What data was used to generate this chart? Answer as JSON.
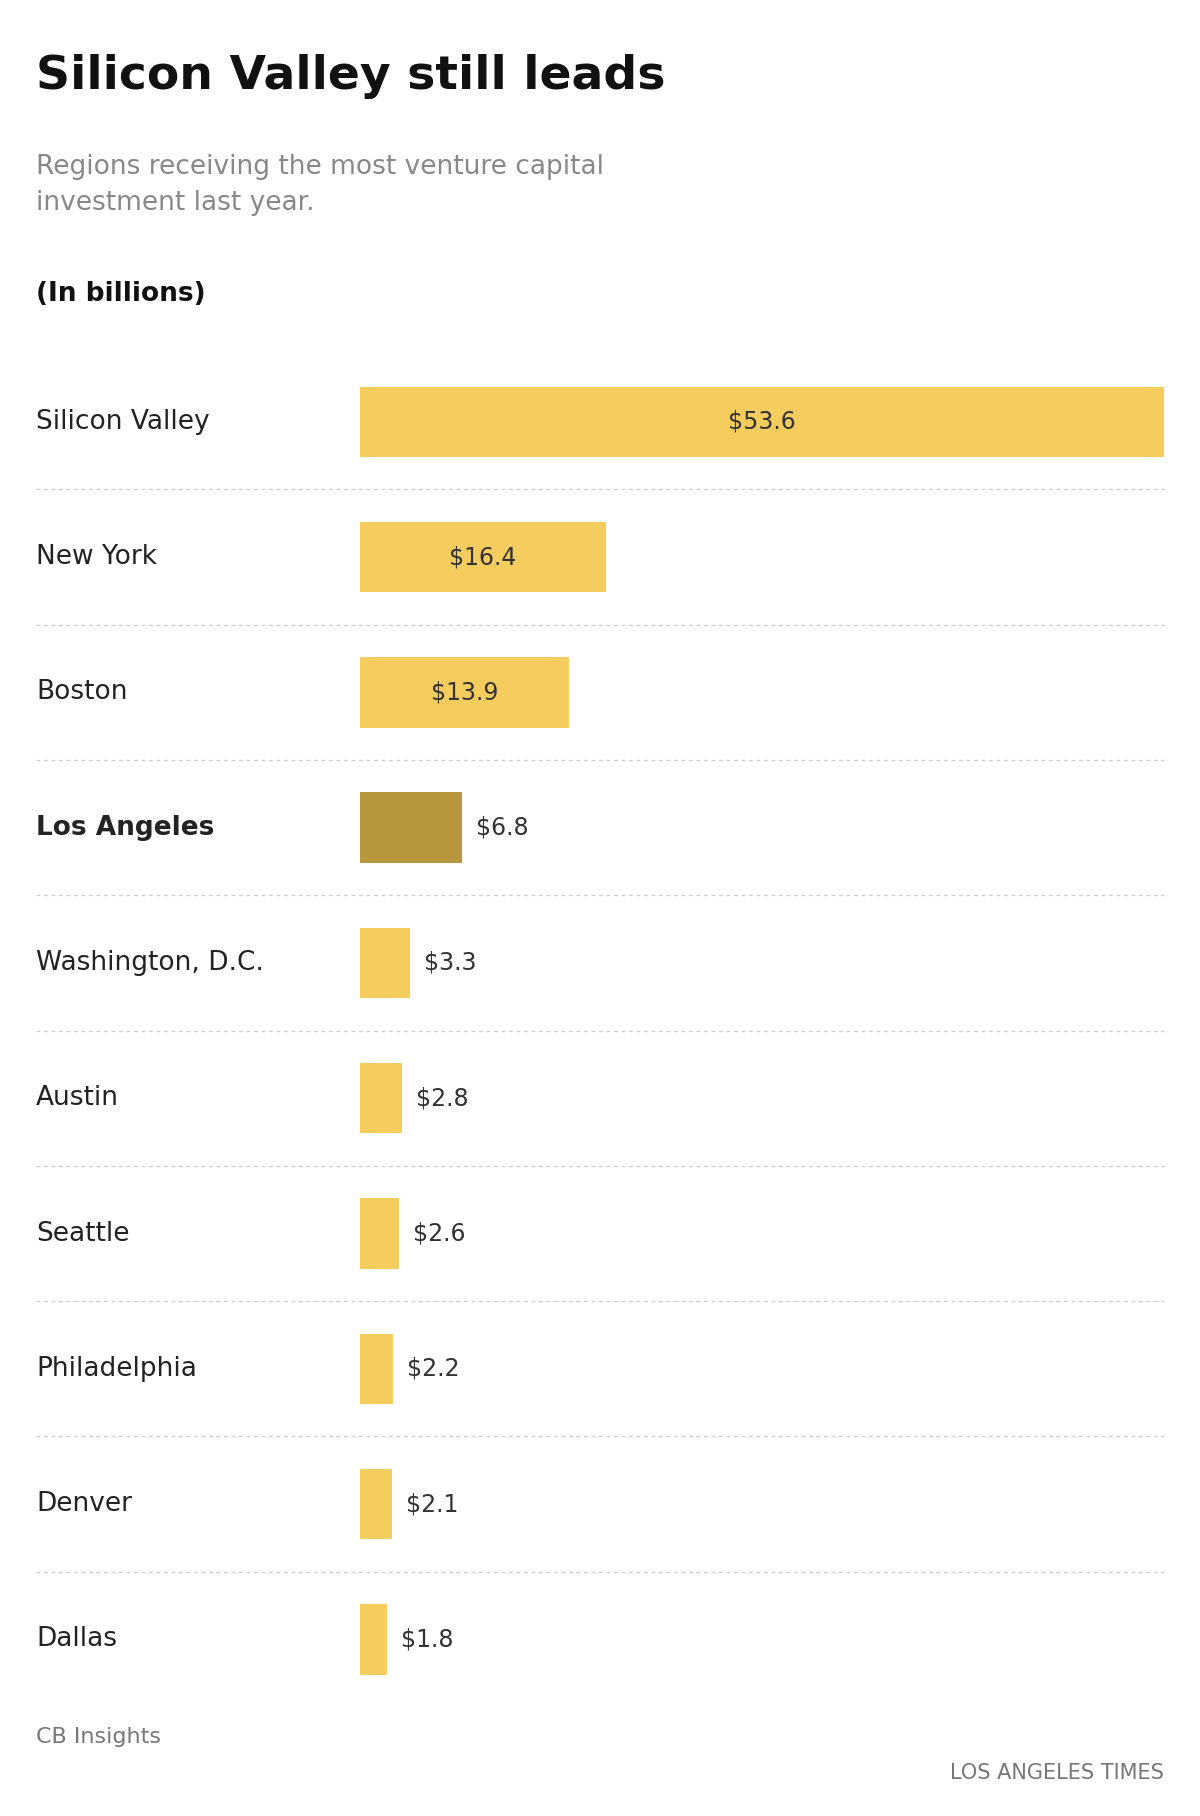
{
  "title": "Silicon Valley still leads",
  "subtitle": "Regions receiving the most venture capital\ninvestment last year.",
  "unit_label": "(In billions)",
  "source": "CB Insights",
  "credit": "LOS ANGELES TIMES",
  "categories": [
    "Silicon Valley",
    "New York",
    "Boston",
    "Los Angeles",
    "Washington, D.C.",
    "Austin",
    "Seattle",
    "Philadelphia",
    "Denver",
    "Dallas"
  ],
  "values": [
    53.6,
    16.4,
    13.9,
    6.8,
    3.3,
    2.8,
    2.6,
    2.2,
    2.1,
    1.8
  ],
  "labels": [
    "$53.6",
    "$16.4",
    "$13.9",
    "$6.8",
    "$3.3",
    "$2.8",
    "$2.6",
    "$2.2",
    "$2.1",
    "$1.8"
  ],
  "bar_colors": [
    "#F5CC5E",
    "#F5CC5E",
    "#F5CC5E",
    "#B8963E",
    "#F5CC5E",
    "#F5CC5E",
    "#F5CC5E",
    "#F5CC5E",
    "#F5CC5E",
    "#F5CC5E"
  ],
  "highlight_index": 3,
  "background_color": "#FFFFFF",
  "xlim_max": 53.6,
  "title_fontsize": 34,
  "subtitle_fontsize": 19,
  "unit_fontsize": 19,
  "label_fontsize": 17,
  "category_fontsize": 19,
  "source_fontsize": 16,
  "credit_fontsize": 15,
  "label_inside_threshold": 13.9,
  "separator_color": "#CCCCCC",
  "separator_style": "dotted"
}
